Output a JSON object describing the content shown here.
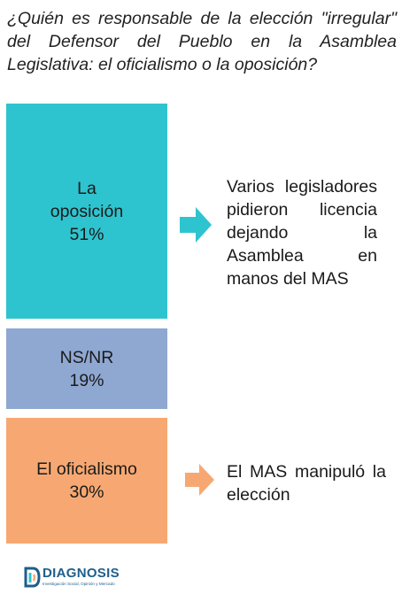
{
  "question": "¿Quién es responsable de la elección \"irregular\" del Defensor del Pueblo en la Asamblea Legislativa: el oficialismo o la oposición?",
  "colors": {
    "oposicion": "#2ec4cf",
    "nsnr": "#8fa8d2",
    "oficialismo": "#f7a872",
    "logo": "#1f5e8c"
  },
  "chart_data": {
    "type": "bar",
    "orientation": "stacked-vertical",
    "categories": [
      "La oposición",
      "NS/NR",
      "El oficialismo"
    ],
    "values": [
      51,
      19,
      30
    ],
    "unit": "%",
    "labels": [
      [
        "La",
        "oposición",
        "51%"
      ],
      [
        "NS/NR",
        "19%"
      ],
      [
        "El oficialismo",
        "30%"
      ]
    ],
    "annotations": [
      {
        "category": "La oposición",
        "text": "Varios legisladores pidieron licencia dejando la Asamblea en manos del MAS"
      },
      {
        "category": "El oficialismo",
        "text": "El MAS manipuló la elección"
      }
    ]
  },
  "brand": {
    "name": "DIAGNOSIS",
    "tagline": "Investigación Social, Opinión y Mercado"
  }
}
